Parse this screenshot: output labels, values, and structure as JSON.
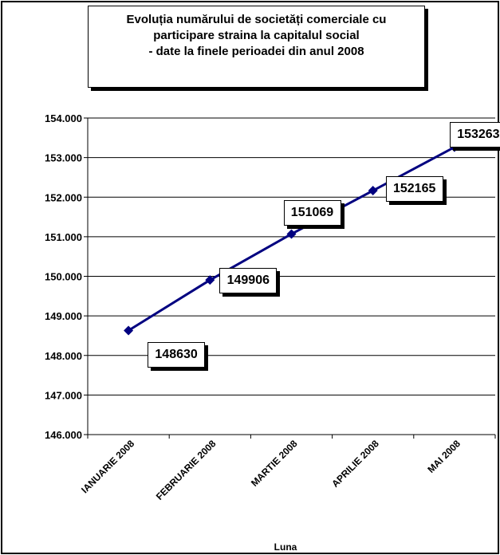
{
  "chart_data": {
    "type": "line",
    "title": "Evoluția numărului de societăți comerciale cu participare straina la capitalul social - date la finele perioadei din anul 2008",
    "title_lines": [
      "Evoluția numărului de societăți comerciale cu",
      "participare straina la capitalul social",
      "- date la finele perioadei din anul 2008"
    ],
    "xlabel": "Luna",
    "ylabel": "",
    "categories": [
      "IANUARIE 2008",
      "FEBRUARIE 2008",
      "MARTIE 2008",
      "APRILIE 2008",
      "MAI 2008"
    ],
    "series": [
      {
        "values": [
          148630,
          149906,
          151069,
          152165,
          153263
        ],
        "color": "#000080"
      }
    ],
    "data_labels": [
      "148630",
      "149906",
      "151069",
      "152165",
      "153263"
    ],
    "ylim": [
      146000,
      154000
    ],
    "yticks": [
      146000,
      147000,
      148000,
      149000,
      150000,
      151000,
      152000,
      153000,
      154000
    ],
    "ytick_labels": [
      "146.000",
      "147.000",
      "148.000",
      "149.000",
      "150.000",
      "151.000",
      "152.000",
      "153.000",
      "154.000"
    ],
    "grid": true,
    "legend": "none",
    "marker": "diamond"
  }
}
